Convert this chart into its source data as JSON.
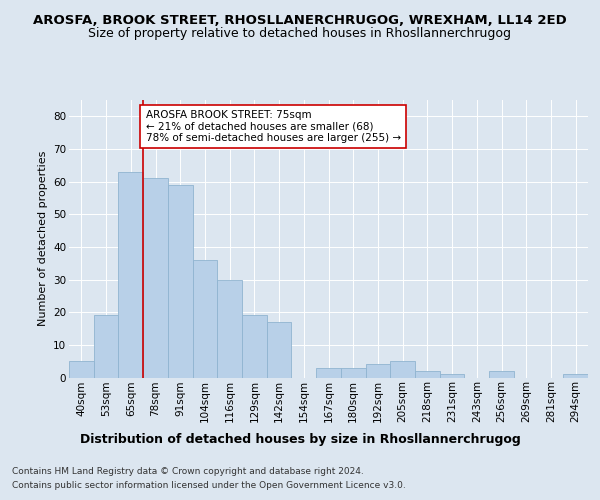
{
  "title1": "AROSFA, BROOK STREET, RHOSLLANERCHRUGOG, WREXHAM, LL14 2ED",
  "title2": "Size of property relative to detached houses in Rhosllannerchrugog",
  "xlabel": "Distribution of detached houses by size in Rhosllannerchrugog",
  "ylabel": "Number of detached properties",
  "footnote1": "Contains HM Land Registry data © Crown copyright and database right 2024.",
  "footnote2": "Contains public sector information licensed under the Open Government Licence v3.0.",
  "bar_labels": [
    "40sqm",
    "53sqm",
    "65sqm",
    "78sqm",
    "91sqm",
    "104sqm",
    "116sqm",
    "129sqm",
    "142sqm",
    "154sqm",
    "167sqm",
    "180sqm",
    "192sqm",
    "205sqm",
    "218sqm",
    "231sqm",
    "243sqm",
    "256sqm",
    "269sqm",
    "281sqm",
    "294sqm"
  ],
  "bar_values": [
    5,
    19,
    63,
    61,
    59,
    36,
    30,
    19,
    17,
    0,
    3,
    3,
    4,
    5,
    2,
    1,
    0,
    2,
    0,
    0,
    1
  ],
  "bar_color": "#b8d0e8",
  "bar_edge_color": "#90b4d0",
  "vline_x": 2.5,
  "vline_color": "#cc0000",
  "annotation_text": "AROSFA BROOK STREET: 75sqm\n← 21% of detached houses are smaller (68)\n78% of semi-detached houses are larger (255) →",
  "annotation_box_facecolor": "#ffffff",
  "annotation_box_edgecolor": "#cc0000",
  "ylim": [
    0,
    85
  ],
  "yticks": [
    0,
    10,
    20,
    30,
    40,
    50,
    60,
    70,
    80
  ],
  "background_color": "#dce6f0",
  "plot_bg_color": "#dce6f0",
  "grid_color": "#ffffff",
  "title1_fontsize": 9.5,
  "title2_fontsize": 9,
  "xlabel_fontsize": 9,
  "ylabel_fontsize": 8,
  "tick_fontsize": 7.5,
  "annotation_fontsize": 7.5,
  "footnote_fontsize": 6.5
}
